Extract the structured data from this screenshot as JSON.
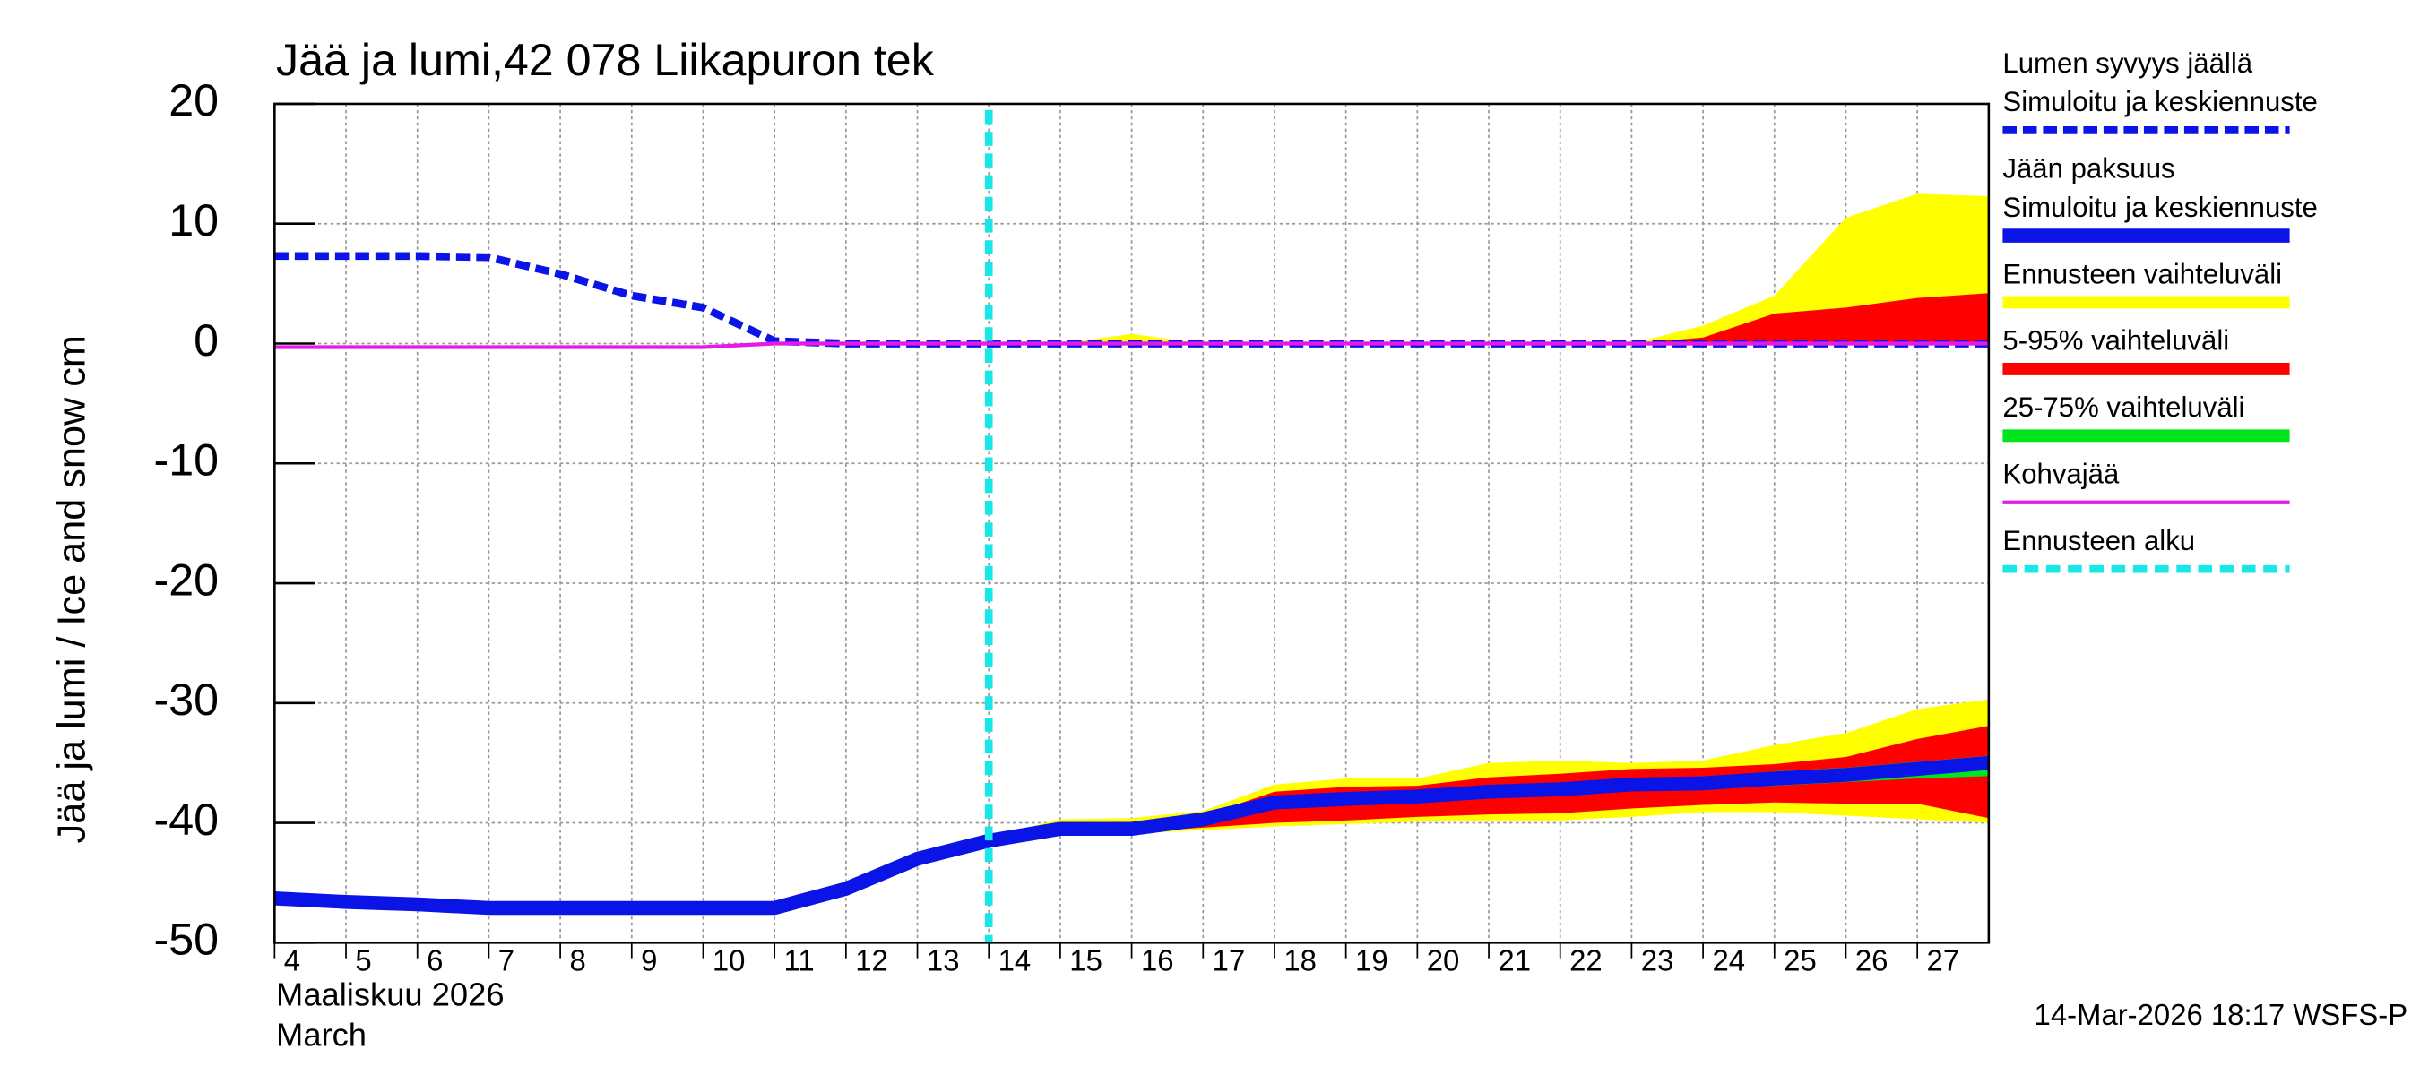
{
  "chart_data": {
    "type": "line",
    "title": "Jää ja lumi,42 078 Liikapuron tek",
    "y_label": "Jää ja lumi / Ice and snow    cm",
    "x_label": [
      "Maaliskuu 2026",
      "March"
    ],
    "footer": "14-Mar-2026 18:17 WSFS-P",
    "x": [
      4,
      5,
      6,
      7,
      8,
      9,
      10,
      11,
      12,
      13,
      14,
      15,
      16,
      17,
      18,
      19,
      20,
      21,
      22,
      23,
      24,
      25,
      26,
      27,
      28
    ],
    "xlim": [
      4,
      28
    ],
    "xticks": [
      4,
      5,
      6,
      7,
      8,
      9,
      10,
      11,
      12,
      13,
      14,
      15,
      16,
      17,
      18,
      19,
      20,
      21,
      22,
      23,
      24,
      25,
      26,
      27
    ],
    "ylim": [
      -50,
      20
    ],
    "yticks": [
      -50,
      -40,
      -30,
      -20,
      -10,
      0,
      10,
      20
    ],
    "grid": true,
    "series": [
      {
        "name": [
          "Lumen syvyys jäällä",
          "Simuloitu ja keskiennuste"
        ],
        "color": "#0a14e6",
        "line_style": "dashed",
        "values": [
          7.3,
          7.3,
          7.3,
          7.2,
          5.8,
          4.0,
          3.0,
          0.2,
          0,
          0,
          0,
          0,
          0,
          0,
          0,
          0,
          0,
          0,
          0,
          0,
          0,
          0,
          0,
          0,
          0
        ]
      },
      {
        "name": [
          "Jään paksuus",
          "Simuloitu ja keskiennuste"
        ],
        "color": "#0a14e6",
        "line_style": "solid",
        "values": [
          -46.3,
          -46.6,
          -46.8,
          -47.1,
          -47.1,
          -47.1,
          -47.1,
          -47.1,
          -45.5,
          -43,
          -41.5,
          -40.5,
          -40.5,
          -39.7,
          -38.3,
          -38,
          -37.8,
          -37.4,
          -37.2,
          -36.8,
          -36.7,
          -36.3,
          -36,
          -35.5,
          -35
        ]
      },
      {
        "name": [
          "Kohvajää"
        ],
        "color": "#e619e6",
        "line_style": "thin",
        "values": [
          -0.3,
          -0.3,
          -0.3,
          -0.3,
          -0.3,
          -0.3,
          -0.3,
          0,
          0,
          0,
          0,
          0,
          0,
          0,
          0,
          0,
          0,
          0,
          0,
          0,
          0,
          0,
          0,
          0,
          0
        ]
      }
    ],
    "bands": [
      {
        "name": [
          "Ennusteen vaihteluväli"
        ],
        "color": "#ffff00",
        "ranges": [
          {
            "upper": [
              null,
              null,
              null,
              null,
              null,
              null,
              null,
              null,
              null,
              null,
              0,
              0,
              0.8,
              0,
              0,
              0,
              0,
              0,
              0,
              0,
              1.5,
              4,
              10.5,
              12.5,
              12.3
            ],
            "lower": [
              null,
              null,
              null,
              null,
              null,
              null,
              null,
              null,
              null,
              null,
              0,
              0,
              0,
              0,
              0,
              0,
              0,
              0,
              0,
              0,
              0,
              0,
              0,
              0,
              0
            ]
          },
          {
            "upper": [
              null,
              null,
              null,
              null,
              null,
              null,
              null,
              null,
              null,
              null,
              -41.2,
              -39.7,
              -39.6,
              -39,
              -36.8,
              -36.3,
              -36.3,
              -35,
              -34.8,
              -35,
              -34.8,
              -33.5,
              -32.5,
              -30.5,
              -29.7
            ],
            "lower": [
              null,
              null,
              null,
              null,
              null,
              null,
              null,
              null,
              null,
              null,
              -41.6,
              -40.9,
              -40.9,
              -40.6,
              -40.3,
              -40.1,
              -39.9,
              -39.8,
              -39.8,
              -39.5,
              -39.1,
              -39.1,
              -39.4,
              -39.7,
              -40
            ]
          }
        ]
      },
      {
        "name": [
          "5-95% vaihteluväli"
        ],
        "color": "#ff0000",
        "ranges": [
          {
            "upper": [
              null,
              null,
              null,
              null,
              null,
              null,
              null,
              null,
              null,
              null,
              0,
              0,
              0,
              0,
              0,
              0,
              0,
              0,
              0,
              0,
              0.5,
              2.5,
              3,
              3.8,
              4.2
            ],
            "lower": [
              null,
              null,
              null,
              null,
              null,
              null,
              null,
              null,
              null,
              null,
              0,
              0,
              0,
              0,
              0,
              0,
              0,
              0,
              0,
              0,
              0,
              0,
              0,
              0,
              0
            ]
          },
          {
            "upper": [
              null,
              null,
              null,
              null,
              null,
              null,
              null,
              null,
              null,
              null,
              -41.4,
              -40.2,
              -40.2,
              -39.4,
              -37.4,
              -37,
              -36.9,
              -36.2,
              -35.9,
              -35.5,
              -35.4,
              -35.1,
              -34.5,
              -33,
              -31.9
            ],
            "lower": [
              null,
              null,
              null,
              null,
              null,
              null,
              null,
              null,
              null,
              null,
              -41.5,
              -40.8,
              -40.8,
              -40.4,
              -40,
              -39.8,
              -39.5,
              -39.3,
              -39.2,
              -38.8,
              -38.5,
              -38.3,
              -38.4,
              -38.4,
              -39.6
            ]
          }
        ]
      },
      {
        "name": [
          "25-75% vaihteluväli"
        ],
        "color": "#00e61e",
        "ranges": [
          {
            "upper": [
              null,
              null,
              null,
              null,
              null,
              null,
              null,
              null,
              null,
              null,
              -41.45,
              -40.4,
              -40.4,
              -39.5,
              -38,
              -37.7,
              -37.5,
              -37.1,
              -36.9,
              -36.4,
              -36.2,
              -35.7,
              -35.4,
              -34.9,
              -34.4
            ],
            "lower": [
              null,
              null,
              null,
              null,
              null,
              null,
              null,
              null,
              null,
              null,
              -41.5,
              -40.6,
              -40.6,
              -39.9,
              -38.8,
              -38.5,
              -38.2,
              -37.9,
              -37.7,
              -37.3,
              -37.2,
              -36.9,
              -36.6,
              -36.3,
              -36.1
            ]
          }
        ]
      }
    ],
    "forecast_start": {
      "name": [
        "Ennusteen alku"
      ],
      "color": "#19e6e6",
      "value": 14
    }
  }
}
